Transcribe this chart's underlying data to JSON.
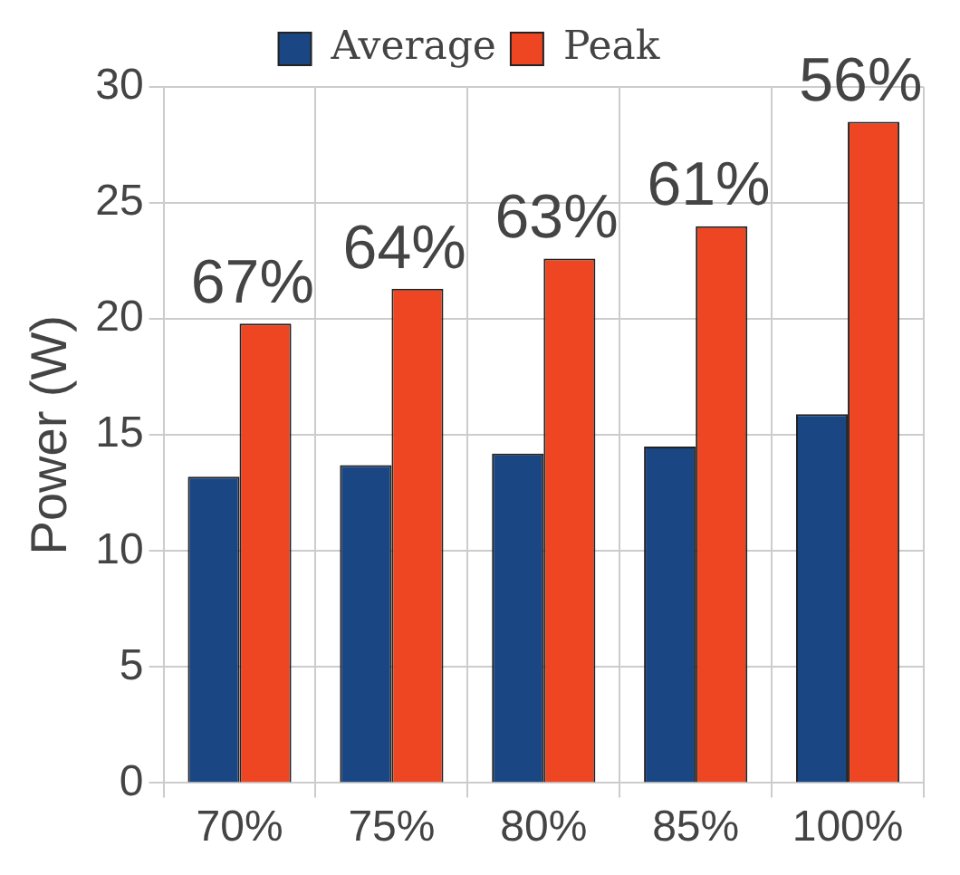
{
  "chart_data": {
    "type": "bar",
    "ylabel": "Power (W)",
    "categories": [
      "70%",
      "75%",
      "80%",
      "85%",
      "100%"
    ],
    "series": [
      {
        "name": "Average",
        "color": "#1a4683",
        "values": [
          13.2,
          13.7,
          14.2,
          14.5,
          15.9
        ]
      },
      {
        "name": "Peak",
        "color": "#ee4623",
        "values": [
          19.8,
          21.3,
          22.6,
          24.0,
          28.5
        ]
      }
    ],
    "ylim": [
      0,
      30
    ],
    "yticks": [
      0,
      5,
      10,
      15,
      20,
      25,
      30
    ],
    "grid": true,
    "legend": "top",
    "annotations": [
      {
        "text": "67%",
        "x": "70%",
        "y": 19.8
      },
      {
        "text": "64%",
        "x": "75%",
        "y": 21.3
      },
      {
        "text": "63%",
        "x": "80%",
        "y": 22.6
      },
      {
        "text": "61%",
        "x": "85%",
        "y": 24.0
      },
      {
        "text": "56%",
        "x": "100%",
        "y": 28.5
      }
    ]
  }
}
